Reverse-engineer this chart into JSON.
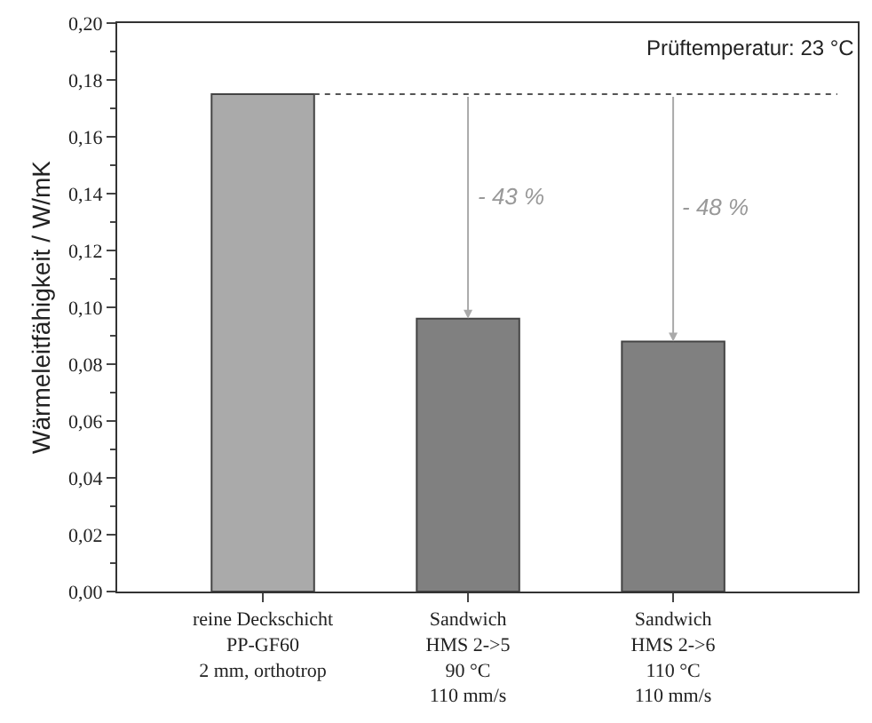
{
  "chart_data": {
    "type": "bar",
    "ylabel": "Wärmeleitfähigkeit / W/mK",
    "categories": [
      "reine Deckschicht\nPP-GF60\n2 mm, orthotrop",
      "Sandwich\nHMS 2->5\n90 °C\n110 mm/s",
      "Sandwich\nHMS 2->6\n110 °C\n110 mm/s"
    ],
    "values": [
      0.175,
      0.096,
      0.088
    ],
    "colors": [
      "#aaaaaa",
      "#808080",
      "#808080"
    ],
    "ylim": [
      0,
      0.2
    ],
    "yticks": [
      {
        "value": 0,
        "label": "0,00"
      },
      {
        "value": 0.02,
        "label": "0,02"
      },
      {
        "value": 0.04,
        "label": "0,04"
      },
      {
        "value": 0.06,
        "label": "0,06"
      },
      {
        "value": 0.08,
        "label": "0,08"
      },
      {
        "value": 0.1,
        "label": "0,10"
      },
      {
        "value": 0.12,
        "label": "0,12"
      },
      {
        "value": 0.14,
        "label": "0,14"
      },
      {
        "value": 0.16,
        "label": "0,16"
      },
      {
        "value": 0.18,
        "label": "0,18"
      },
      {
        "value": 0.2,
        "label": "0,20"
      }
    ],
    "ref_lines": [
      {
        "axis": "y",
        "value": 0.175,
        "line_style": "dotted",
        "color": "#555555"
      }
    ],
    "annotations": [
      "Prüftemperatur: 23 °C",
      "- 43 %",
      "- 48 %"
    ]
  }
}
